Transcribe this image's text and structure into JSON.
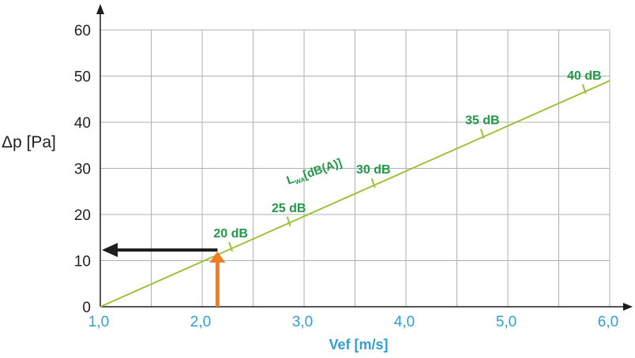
{
  "chart_data": {
    "type": "line",
    "ylabel": "Δp [Pa]",
    "xlabel": "Vef [m/s]",
    "xlim": [
      1.0,
      6.0
    ],
    "ylim": [
      0,
      60
    ],
    "x_ticks": [
      "1,0",
      "2,0",
      "3,0",
      "4,0",
      "5,0",
      "6,0"
    ],
    "y_ticks": [
      "0",
      "10",
      "20",
      "30",
      "40",
      "50",
      "60"
    ],
    "x_tick_values": [
      1.0,
      2.0,
      3.0,
      4.0,
      5.0,
      6.0
    ],
    "y_tick_values": [
      0,
      10,
      20,
      30,
      40,
      50,
      60
    ],
    "grid": true,
    "series": [
      {
        "x": [
          1.0,
          6.0
        ],
        "y": [
          0,
          49
        ]
      }
    ],
    "line_label": {
      "main": "L",
      "sub": "WA",
      "rest": "[dB(A)]"
    },
    "annotations": [
      {
        "text": "20 dB",
        "x": 2.28,
        "y": 13
      },
      {
        "text": "25 dB",
        "x": 2.85,
        "y": 18.5
      },
      {
        "text": "30 dB",
        "x": 3.68,
        "y": 26.8
      },
      {
        "text": "35 dB",
        "x": 4.75,
        "y": 37.5
      },
      {
        "text": "40 dB",
        "x": 5.75,
        "y": 47.2
      }
    ],
    "reading": {
      "x": 2.15,
      "y": 12.3
    },
    "colors": {
      "line": "#9dc33b",
      "labels": "#1e9a46",
      "x_axis_text": "#2f9fd7",
      "orange_arrow": "#f07d22",
      "black_arrow": "#1e1e1e",
      "grid": "#b0b0b0"
    }
  }
}
